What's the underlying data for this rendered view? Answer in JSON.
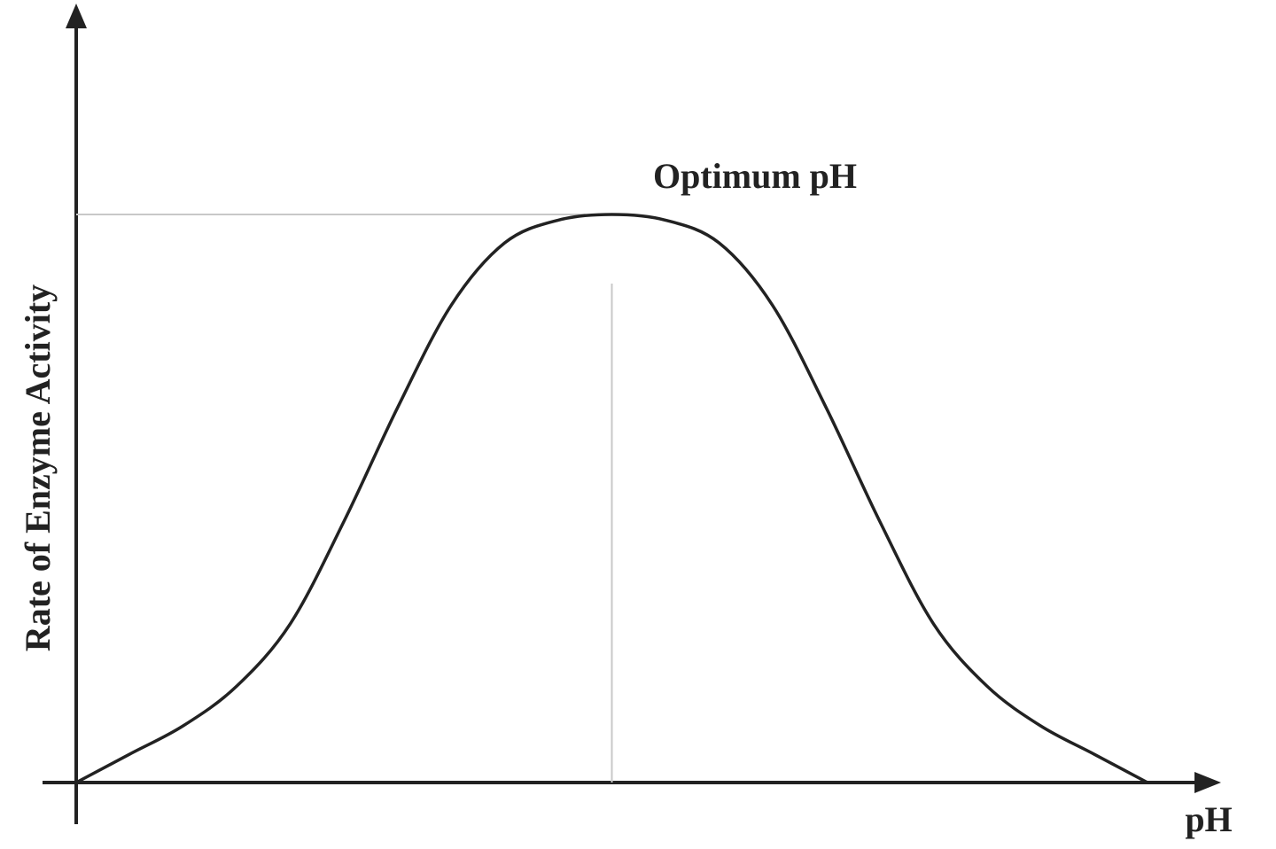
{
  "chart_data": {
    "type": "line",
    "title": "",
    "xlabel": "pH",
    "ylabel": "Rate of Enzyme Activity",
    "annotation": "Optimum pH",
    "x_ticks": [],
    "y_ticks": [],
    "xlim": [
      0,
      1
    ],
    "ylim": [
      0,
      1
    ],
    "grid": false,
    "legend": "none",
    "optimum": {
      "x": 0.5,
      "y": 1.0
    },
    "series": [
      {
        "x": [
          0.0,
          0.05,
          0.1,
          0.15,
          0.2,
          0.25,
          0.3,
          0.35,
          0.4,
          0.45,
          0.5,
          0.55,
          0.6,
          0.65,
          0.7,
          0.75,
          0.8,
          0.85,
          0.9,
          0.95,
          1.0
        ],
        "values": [
          0.0,
          0.05,
          0.1,
          0.17,
          0.28,
          0.46,
          0.66,
          0.84,
          0.95,
          0.99,
          1.0,
          0.99,
          0.95,
          0.84,
          0.66,
          0.46,
          0.28,
          0.17,
          0.1,
          0.05,
          0.0
        ]
      }
    ],
    "colors": {
      "curve": "#222222",
      "axes": "#222222",
      "guides": "#c8c8c8"
    }
  }
}
